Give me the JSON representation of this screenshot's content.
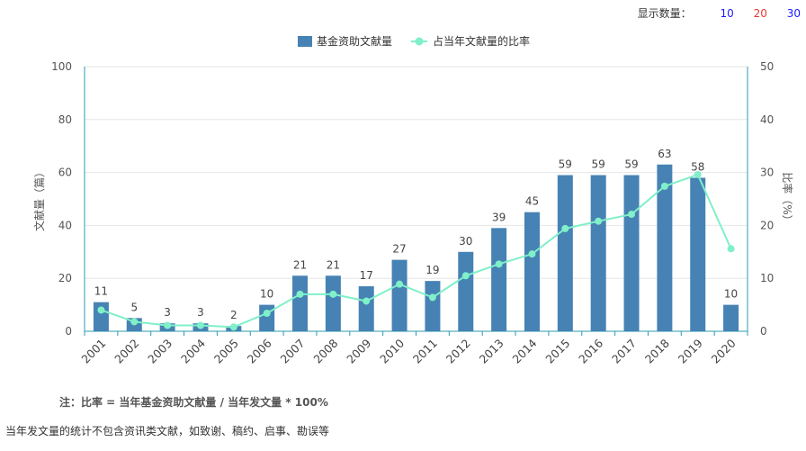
{
  "controls": {
    "display_label": "显示数量：",
    "options": [
      {
        "label": "10",
        "color": "#1a1aff"
      },
      {
        "label": "20",
        "color": "#e53935"
      },
      {
        "label": "30",
        "color": "#1a1aff"
      }
    ]
  },
  "notes": {
    "formula": "注：比率 = 当年基金资助文献量 / 当年发文量 * 100%",
    "footnote": "当年发文量的统计不包含资讯类文献，如致谢、稿约、启事、勘误等"
  },
  "colors": {
    "bar": "#4682b4",
    "line": "#7ff0c8",
    "axis": "#2a9bb0",
    "grid": "#e6e6e6"
  },
  "chart_data": {
    "type": "bar",
    "categories": [
      "2001",
      "2002",
      "2003",
      "2004",
      "2005",
      "2006",
      "2007",
      "2008",
      "2009",
      "2010",
      "2011",
      "2012",
      "2013",
      "2014",
      "2015",
      "2016",
      "2017",
      "2018",
      "2019",
      "2020"
    ],
    "series": [
      {
        "name": "基金资助文献量",
        "type": "bar",
        "axis": "left",
        "values": [
          11,
          5,
          3,
          3,
          2,
          10,
          21,
          21,
          17,
          27,
          19,
          30,
          39,
          45,
          59,
          59,
          59,
          63,
          58,
          10
        ]
      },
      {
        "name": "占当年文献量的比率",
        "type": "line",
        "axis": "right",
        "values": [
          4.0,
          1.8,
          1.1,
          1.1,
          0.8,
          3.4,
          7.0,
          7.0,
          5.7,
          8.9,
          6.4,
          10.5,
          12.7,
          14.6,
          19.4,
          20.8,
          22.1,
          27.4,
          29.6,
          15.6
        ]
      }
    ],
    "ylabel": "文献量（篇）",
    "y2label": "比率（%）",
    "ylim": [
      0,
      100
    ],
    "y2lim": [
      0,
      50
    ],
    "yticks": [
      0,
      20,
      40,
      60,
      80,
      100
    ],
    "y2ticks": [
      0,
      10,
      20,
      30,
      40,
      50
    ],
    "grid": true,
    "legend": "top-center"
  }
}
